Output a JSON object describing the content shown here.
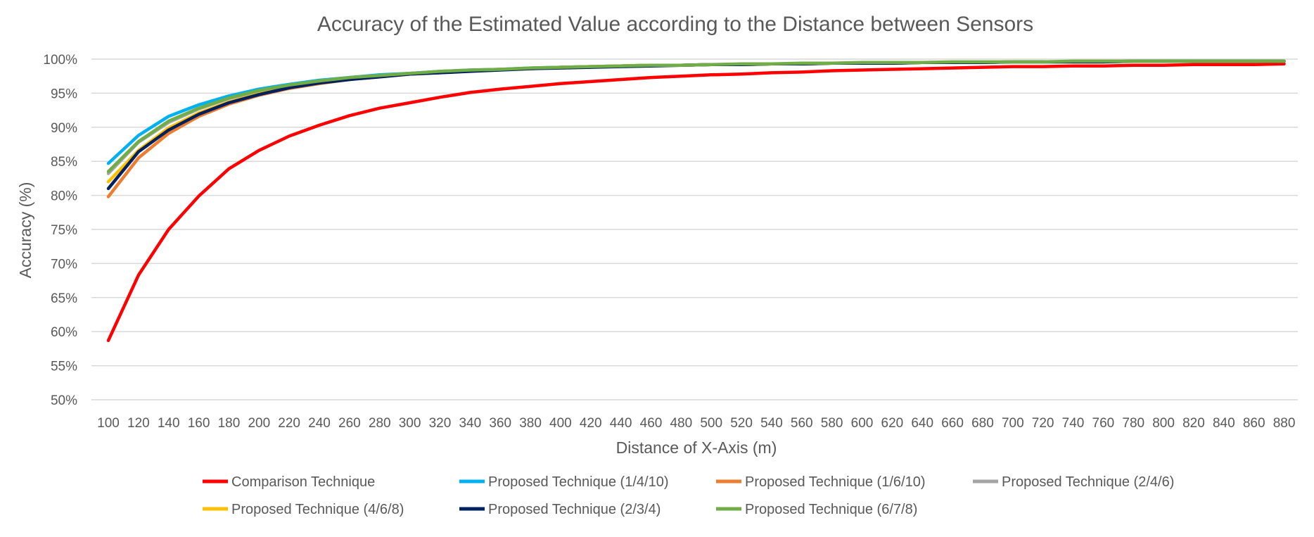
{
  "chart_data": {
    "type": "line",
    "title": "Accuracy of the Estimated Value according to the Distance between Sensors",
    "xlabel": "Distance of X-Axis (m)",
    "ylabel": "Accuracy (%)",
    "x": [
      100,
      120,
      140,
      160,
      180,
      200,
      220,
      240,
      260,
      280,
      300,
      320,
      340,
      360,
      380,
      400,
      420,
      440,
      460,
      480,
      500,
      520,
      540,
      560,
      580,
      600,
      620,
      640,
      660,
      680,
      700,
      720,
      740,
      760,
      780,
      800,
      820,
      840,
      860,
      880
    ],
    "x_tick_labels": [
      "100",
      "120",
      "140",
      "160",
      "180",
      "200",
      "220",
      "240",
      "260",
      "280",
      "300",
      "320",
      "340",
      "360",
      "380",
      "400",
      "420",
      "440",
      "460",
      "480",
      "500",
      "520",
      "540",
      "560",
      "580",
      "600",
      "620",
      "640",
      "660",
      "680",
      "700",
      "720",
      "740",
      "760",
      "780",
      "800",
      "820",
      "840",
      "860",
      "880"
    ],
    "ylim": [
      50,
      100
    ],
    "y_ticks": [
      50,
      55,
      60,
      65,
      70,
      75,
      80,
      85,
      90,
      95,
      100
    ],
    "y_tick_labels": [
      "50%",
      "55%",
      "60%",
      "65%",
      "70%",
      "75%",
      "80%",
      "85%",
      "90%",
      "95%",
      "100%"
    ],
    "grid": true,
    "legend_position": "bottom",
    "series": [
      {
        "name": "Comparison Technique",
        "color": "#ff0000",
        "values": [
          58.7,
          68.3,
          75.0,
          79.9,
          83.9,
          86.6,
          88.7,
          90.3,
          91.7,
          92.8,
          93.6,
          94.4,
          95.1,
          95.6,
          96.0,
          96.4,
          96.7,
          97.0,
          97.3,
          97.5,
          97.7,
          97.8,
          98.0,
          98.1,
          98.3,
          98.4,
          98.5,
          98.6,
          98.7,
          98.8,
          98.9,
          98.9,
          99.0,
          99.0,
          99.1,
          99.1,
          99.2,
          99.2,
          99.2,
          99.3
        ]
      },
      {
        "name": "Proposed Technique (1/4/10)",
        "color": "#00b0f0",
        "values": [
          84.7,
          88.8,
          91.6,
          93.3,
          94.6,
          95.6,
          96.3,
          96.9,
          97.3,
          97.7,
          97.9,
          98.2,
          98.4,
          98.5,
          98.7,
          98.8,
          98.9,
          99.0,
          99.1,
          99.1,
          99.2,
          99.2,
          99.3,
          99.3,
          99.4,
          99.4,
          99.4,
          99.5,
          99.5,
          99.5,
          99.6,
          99.6,
          99.6,
          99.6,
          99.7,
          99.7,
          99.7,
          99.7,
          99.7,
          99.7
        ]
      },
      {
        "name": "Proposed Technique (1/6/10)",
        "color": "#ed7d31",
        "values": [
          79.8,
          85.5,
          89.1,
          91.6,
          93.4,
          94.7,
          95.7,
          96.4,
          97.0,
          97.4,
          97.8,
          98.0,
          98.3,
          98.5,
          98.6,
          98.8,
          98.9,
          99.0,
          99.1,
          99.1,
          99.2,
          99.2,
          99.3,
          99.3,
          99.4,
          99.4,
          99.4,
          99.5,
          99.5,
          99.5,
          99.6,
          99.6,
          99.6,
          99.6,
          99.7,
          99.7,
          99.7,
          99.7,
          99.7,
          99.7
        ]
      },
      {
        "name": "Proposed Technique (2/4/6)",
        "color": "#a5a5a5",
        "values": [
          83.2,
          87.8,
          90.7,
          92.7,
          94.2,
          95.3,
          96.1,
          96.7,
          97.2,
          97.6,
          97.9,
          98.1,
          98.3,
          98.5,
          98.6,
          98.8,
          98.9,
          99.0,
          99.1,
          99.1,
          99.2,
          99.2,
          99.3,
          99.3,
          99.4,
          99.4,
          99.4,
          99.5,
          99.5,
          99.5,
          99.6,
          99.6,
          99.6,
          99.6,
          99.7,
          99.7,
          99.7,
          99.7,
          99.7,
          99.7
        ]
      },
      {
        "name": "Proposed Technique (4/6/8)",
        "color": "#ffc000",
        "values": [
          82.0,
          86.6,
          89.9,
          92.1,
          93.7,
          94.9,
          95.9,
          96.6,
          97.1,
          97.5,
          97.8,
          98.1,
          98.3,
          98.5,
          98.6,
          98.8,
          98.9,
          99.0,
          99.1,
          99.1,
          99.2,
          99.2,
          99.3,
          99.3,
          99.4,
          99.4,
          99.4,
          99.5,
          99.5,
          99.5,
          99.6,
          99.6,
          99.6,
          99.6,
          99.7,
          99.7,
          99.7,
          99.7,
          99.7,
          99.7
        ]
      },
      {
        "name": "Proposed Technique (2/3/4)",
        "color": "#002060",
        "values": [
          81.0,
          86.4,
          89.6,
          91.9,
          93.6,
          94.8,
          95.8,
          96.5,
          97.0,
          97.4,
          97.8,
          98.0,
          98.2,
          98.4,
          98.6,
          98.7,
          98.8,
          98.9,
          99.0,
          99.1,
          99.2,
          99.2,
          99.3,
          99.3,
          99.4,
          99.4,
          99.4,
          99.5,
          99.5,
          99.5,
          99.6,
          99.6,
          99.6,
          99.6,
          99.7,
          99.7,
          99.7,
          99.7,
          99.7,
          99.7
        ]
      },
      {
        "name": "Proposed Technique (6/7/8)",
        "color": "#70ad47",
        "values": [
          83.5,
          87.9,
          90.9,
          92.8,
          94.3,
          95.4,
          96.2,
          96.8,
          97.3,
          97.6,
          97.9,
          98.2,
          98.4,
          98.5,
          98.7,
          98.8,
          98.9,
          99.0,
          99.1,
          99.1,
          99.2,
          99.3,
          99.3,
          99.4,
          99.4,
          99.5,
          99.5,
          99.5,
          99.6,
          99.6,
          99.6,
          99.6,
          99.7,
          99.7,
          99.7,
          99.7,
          99.7,
          99.7,
          99.7,
          99.7
        ]
      }
    ]
  }
}
